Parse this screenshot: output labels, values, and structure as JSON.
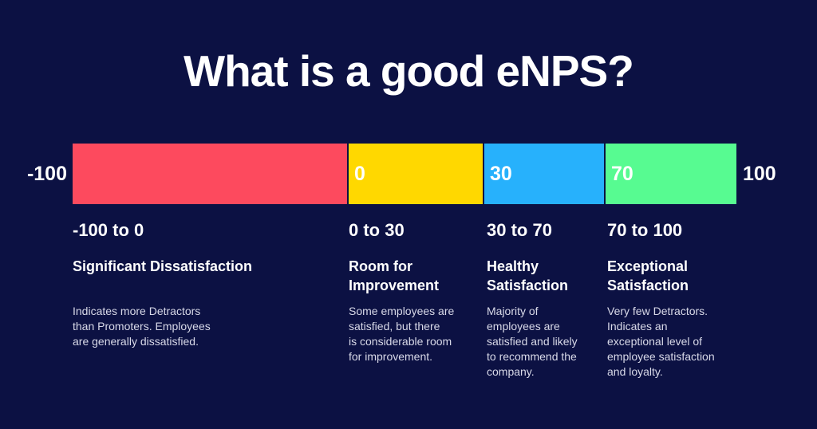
{
  "title": "What is a good eNPS?",
  "colors": {
    "background": "#0c1143",
    "text": "#ffffff",
    "muted_text": "#d8d9e8",
    "red": "#fd4a5e",
    "yellow": "#ffd800",
    "blue": "#27b1fc",
    "green": "#57fb91"
  },
  "scale": {
    "min_label": "-100",
    "max_label": "100",
    "segments": [
      {
        "label": "",
        "color": "#fd4a5e",
        "range": "-100 to 0"
      },
      {
        "label": "0",
        "color": "#ffd800",
        "range": "0 to 30"
      },
      {
        "label": "30",
        "color": "#27b1fc",
        "range": "30 to 70"
      },
      {
        "label": "70",
        "color": "#57fb91",
        "range": "70 to 100"
      }
    ]
  },
  "categories": [
    {
      "range": "-100 to 0",
      "heading": "Significant Dissatisfaction",
      "description": "Indicates more Detractors\nthan Promoters. Employees\nare generally dissatisfied."
    },
    {
      "range": "0 to 30",
      "heading": "Room for\nImprovement",
      "description": "Some employees are\nsatisfied, but there\nis considerable room\nfor improvement."
    },
    {
      "range": "30 to 70",
      "heading": "Healthy\nSatisfaction",
      "description": "Majority of\nemployees are\nsatisfied and likely\nto recommend the\ncompany."
    },
    {
      "range": "70 to 100",
      "heading": "Exceptional\nSatisfaction",
      "description": "Very few Detractors.\nIndicates an\nexceptional level of\nemployee satisfaction\nand loyalty."
    }
  ]
}
